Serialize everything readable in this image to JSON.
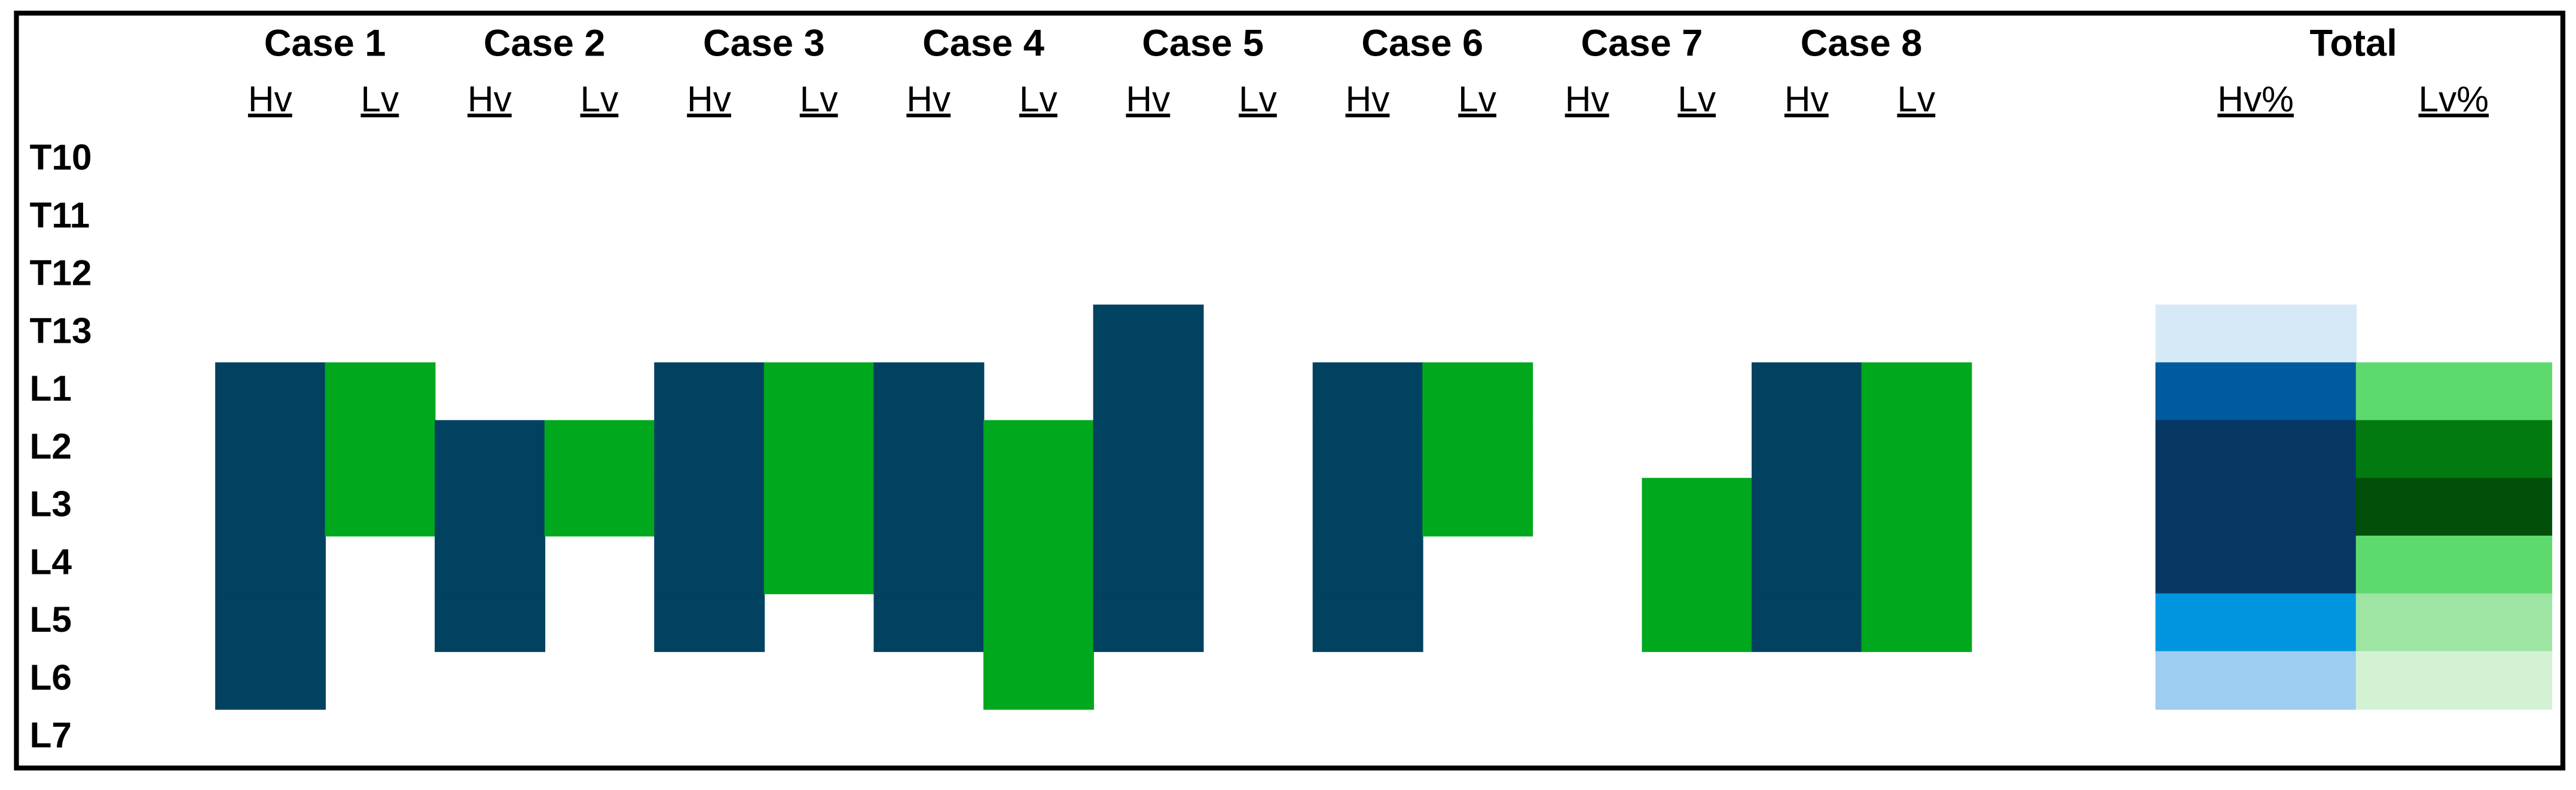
{
  "row_labels": [
    "T10",
    "T11",
    "T12",
    "T13",
    "L1",
    "L2",
    "L3",
    "L4",
    "L5",
    "L6",
    "L7"
  ],
  "groups": [
    {
      "title": "Case 1",
      "columns": [
        {
          "label": "Hv",
          "cells": [
            null,
            null,
            null,
            null,
            "#00425f",
            "#00425f",
            "#00425f",
            "#00425f",
            "#00425f",
            "#00425f",
            null
          ]
        },
        {
          "label": "Lv",
          "cells": [
            null,
            null,
            null,
            null,
            "#00a81d",
            "#00a81d",
            "#00a81d",
            null,
            null,
            null,
            null
          ]
        }
      ]
    },
    {
      "title": "Case 2",
      "columns": [
        {
          "label": "Hv",
          "cells": [
            null,
            null,
            null,
            null,
            null,
            "#00425f",
            "#00425f",
            "#00425f",
            "#00425f",
            null,
            null
          ]
        },
        {
          "label": "Lv",
          "cells": [
            null,
            null,
            null,
            null,
            null,
            "#00a81d",
            "#00a81d",
            null,
            null,
            null,
            null
          ]
        }
      ]
    },
    {
      "title": "Case 3",
      "columns": [
        {
          "label": "Hv",
          "cells": [
            null,
            null,
            null,
            null,
            "#00425f",
            "#00425f",
            "#00425f",
            "#00425f",
            "#00425f",
            null,
            null
          ]
        },
        {
          "label": "Lv",
          "cells": [
            null,
            null,
            null,
            null,
            "#00a81d",
            "#00a81d",
            "#00a81d",
            "#00a81d",
            null,
            null,
            null
          ]
        }
      ]
    },
    {
      "title": "Case 4",
      "columns": [
        {
          "label": "Hv",
          "cells": [
            null,
            null,
            null,
            null,
            "#00425f",
            "#00425f",
            "#00425f",
            "#00425f",
            "#00425f",
            null,
            null
          ]
        },
        {
          "label": "Lv",
          "cells": [
            null,
            null,
            null,
            null,
            null,
            "#00a81d",
            "#00a81d",
            "#00a81d",
            "#00a81d",
            "#00a81d",
            null
          ]
        }
      ]
    },
    {
      "title": "Case 5",
      "columns": [
        {
          "label": "Hv",
          "cells": [
            null,
            null,
            null,
            "#00425f",
            "#00425f",
            "#00425f",
            "#00425f",
            "#00425f",
            "#00425f",
            null,
            null
          ]
        },
        {
          "label": "Lv",
          "cells": [
            null,
            null,
            null,
            null,
            null,
            null,
            null,
            null,
            null,
            null,
            null
          ]
        }
      ]
    },
    {
      "title": "Case 6",
      "columns": [
        {
          "label": "Hv",
          "cells": [
            null,
            null,
            null,
            null,
            "#00425f",
            "#00425f",
            "#00425f",
            "#00425f",
            "#00425f",
            null,
            null
          ]
        },
        {
          "label": "Lv",
          "cells": [
            null,
            null,
            null,
            null,
            "#00a81d",
            "#00a81d",
            "#00a81d",
            null,
            null,
            null,
            null
          ]
        }
      ]
    },
    {
      "title": "Case 7",
      "columns": [
        {
          "label": "Hv",
          "cells": [
            null,
            null,
            null,
            null,
            null,
            null,
            null,
            null,
            null,
            null,
            null
          ]
        },
        {
          "label": "Lv",
          "cells": [
            null,
            null,
            null,
            null,
            null,
            null,
            "#00a81d",
            "#00a81d",
            "#00a81d",
            null,
            null
          ]
        }
      ]
    },
    {
      "title": "Case 8",
      "columns": [
        {
          "label": "Hv",
          "cells": [
            null,
            null,
            null,
            null,
            "#00425f",
            "#00425f",
            "#00425f",
            "#00425f",
            "#00425f",
            null,
            null
          ]
        },
        {
          "label": "Lv",
          "cells": [
            null,
            null,
            null,
            null,
            "#00a81d",
            "#00a81d",
            "#00a81d",
            "#00a81d",
            "#00a81d",
            null,
            null
          ]
        }
      ]
    },
    {
      "title": "Total",
      "columns": [
        {
          "label": "Hv%",
          "cells": [
            null,
            null,
            null,
            "#d6e9f7",
            "#005a9e",
            "#063763",
            "#063763",
            "#063763",
            "#0095de",
            "#9dcdf0",
            null
          ]
        },
        {
          "label": "Lv%",
          "cells": [
            null,
            null,
            null,
            null,
            "#5ed96e",
            "#027a10",
            "#024f0a",
            "#5ed96e",
            "#9ee4a2",
            "#d3f2d3",
            null
          ]
        }
      ]
    }
  ]
}
